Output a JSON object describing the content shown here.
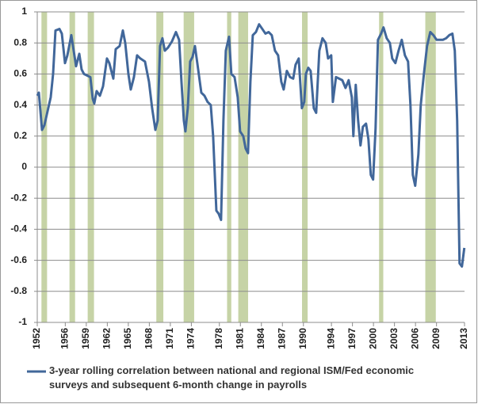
{
  "chart_data": {
    "type": "line",
    "x": [
      1952.0,
      1952.23,
      1952.68,
      1953.02,
      1953.47,
      1953.92,
      1954.26,
      1954.6,
      1955.17,
      1955.51,
      1955.96,
      1956.3,
      1956.86,
      1957.2,
      1957.54,
      1958.0,
      1958.33,
      1958.67,
      1959.13,
      1959.58,
      1959.92,
      1960.14,
      1960.48,
      1960.94,
      1961.39,
      1961.95,
      1962.29,
      1962.86,
      1963.2,
      1963.76,
      1964.22,
      1964.56,
      1965.01,
      1965.35,
      1965.8,
      1966.25,
      1966.71,
      1967.38,
      1967.95,
      1968.4,
      1968.86,
      1969.19,
      1969.53,
      1969.87,
      1970.21,
      1970.67,
      1971.23,
      1971.8,
      1972.25,
      1972.59,
      1972.93,
      1973.15,
      1973.49,
      1973.83,
      1974.17,
      1974.51,
      1974.85,
      1975.42,
      1975.87,
      1976.32,
      1976.77,
      1977.11,
      1977.57,
      1977.9,
      1978.24,
      1978.58,
      1978.92,
      1979.38,
      1979.71,
      1980.17,
      1980.62,
      1980.96,
      1981.41,
      1981.75,
      1982.09,
      1982.43,
      1982.77,
      1983.22,
      1983.67,
      1984.13,
      1984.58,
      1985.03,
      1985.48,
      1985.94,
      1986.39,
      1986.84,
      1987.18,
      1987.63,
      1988.09,
      1988.54,
      1988.88,
      1989.33,
      1989.78,
      1990.12,
      1990.35,
      1990.69,
      1991.03,
      1991.48,
      1991.82,
      1992.27,
      1992.72,
      1993.18,
      1993.52,
      1993.97,
      1994.2,
      1994.65,
      1995.1,
      1995.55,
      1996.01,
      1996.46,
      1996.91,
      1997.13,
      1997.47,
      1997.81,
      1998.15,
      1998.49,
      1998.94,
      1999.28,
      1999.62,
      1999.95,
      2000.3,
      2000.64,
      2001.09,
      2001.43,
      2001.89,
      2002.34,
      2002.68,
      2003.13,
      2003.58,
      2004.04,
      2004.49,
      2004.94,
      2005.28,
      2005.62,
      2005.96,
      2006.41,
      2006.75,
      2007.2,
      2007.65,
      2008.11,
      2008.56,
      2009.01,
      2009.46,
      2009.91,
      2010.37,
      2010.82,
      2011.27,
      2011.61,
      2011.95,
      2012.29,
      2012.63,
      2012.97
    ],
    "series": [
      {
        "name": "3-year rolling correlation between national and regional ISM/Fed economic surveys and subsequent 6-month change in payrolls",
        "color": "#41679a",
        "values": [
          0.46,
          0.48,
          0.24,
          0.27,
          0.36,
          0.45,
          0.6,
          0.88,
          0.89,
          0.86,
          0.67,
          0.72,
          0.85,
          0.75,
          0.65,
          0.73,
          0.63,
          0.6,
          0.59,
          0.58,
          0.44,
          0.41,
          0.49,
          0.46,
          0.52,
          0.7,
          0.67,
          0.57,
          0.76,
          0.78,
          0.88,
          0.8,
          0.6,
          0.5,
          0.58,
          0.72,
          0.7,
          0.68,
          0.55,
          0.38,
          0.24,
          0.3,
          0.78,
          0.83,
          0.75,
          0.77,
          0.81,
          0.87,
          0.82,
          0.55,
          0.3,
          0.23,
          0.38,
          0.68,
          0.71,
          0.78,
          0.67,
          0.48,
          0.46,
          0.42,
          0.4,
          0.2,
          -0.28,
          -0.3,
          -0.34,
          0.3,
          0.75,
          0.84,
          0.6,
          0.58,
          0.45,
          0.23,
          0.2,
          0.12,
          0.09,
          0.55,
          0.85,
          0.87,
          0.92,
          0.89,
          0.86,
          0.87,
          0.85,
          0.75,
          0.72,
          0.55,
          0.5,
          0.62,
          0.58,
          0.57,
          0.66,
          0.7,
          0.38,
          0.42,
          0.6,
          0.64,
          0.62,
          0.38,
          0.35,
          0.75,
          0.83,
          0.8,
          0.7,
          0.72,
          0.42,
          0.58,
          0.57,
          0.56,
          0.51,
          0.56,
          0.45,
          0.2,
          0.53,
          0.3,
          0.14,
          0.26,
          0.28,
          0.18,
          -0.05,
          -0.08,
          0.25,
          0.82,
          0.86,
          0.9,
          0.83,
          0.8,
          0.7,
          0.67,
          0.75,
          0.82,
          0.72,
          0.68,
          0.4,
          -0.05,
          -0.12,
          0.08,
          0.4,
          0.6,
          0.78,
          0.87,
          0.85,
          0.82,
          0.82,
          0.82,
          0.83,
          0.85,
          0.86,
          0.75,
          0.3,
          -0.62,
          -0.64,
          -0.52
        ]
      }
    ],
    "recessions": [
      [
        1952.6,
        1953.4
      ],
      [
        1956.6,
        1957.4
      ],
      [
        1959.2,
        1960.1
      ],
      [
        1969.0,
        1970.0
      ],
      [
        1972.9,
        1974.4
      ],
      [
        1979.1,
        1979.7
      ],
      [
        1980.7,
        1982.1
      ],
      [
        1989.8,
        1990.6
      ],
      [
        2000.8,
        2001.4
      ],
      [
        2007.4,
        2008.9
      ]
    ],
    "recession_color": "#c6d3a6",
    "xlim": [
      1952,
      2013
    ],
    "xticks": [
      1952,
      1956,
      1959,
      1962,
      1965,
      1968,
      1971,
      1974,
      1978,
      1981,
      1984,
      1987,
      1990,
      1994,
      1997,
      2000,
      2003,
      2006,
      2009,
      2013
    ],
    "ylim": [
      -1,
      1
    ],
    "yticks": [
      -1,
      -0.8,
      -0.6,
      -0.4,
      -0.2,
      0,
      0.2,
      0.4,
      0.6,
      0.8,
      1
    ],
    "grid": true,
    "legend": "bottom"
  }
}
